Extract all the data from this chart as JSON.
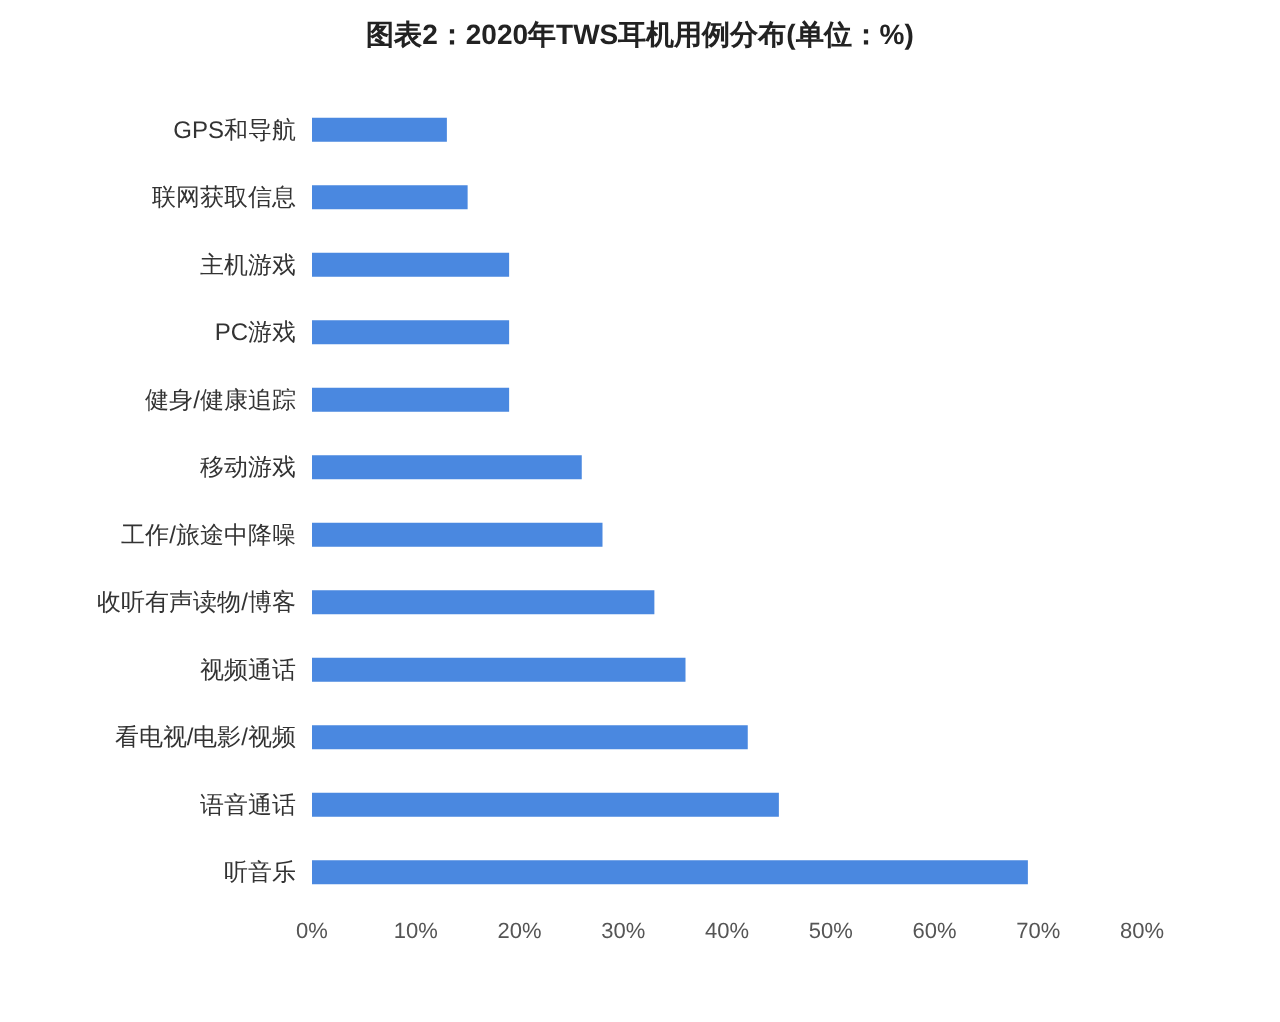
{
  "chart_data": {
    "type": "bar",
    "orientation": "horizontal",
    "title": "图表2：2020年TWS耳机用例分布(单位：%)",
    "categories": [
      "GPS和导航",
      "联网获取信息",
      "主机游戏",
      "PC游戏",
      "健身/健康追踪",
      "移动游戏",
      "工作/旅途中降噪",
      "收听有声读物/博客",
      "视频通话",
      "看电视/电影/视频",
      "语音通话",
      "听音乐"
    ],
    "values": [
      13,
      15,
      19,
      19,
      19,
      26,
      28,
      33,
      36,
      42,
      45,
      69
    ],
    "color": "#4a88e0",
    "xlim": [
      0,
      80
    ],
    "xticks": [
      {
        "value": 0,
        "label": "0%"
      },
      {
        "value": 10,
        "label": "10%"
      },
      {
        "value": 20,
        "label": "20%"
      },
      {
        "value": 30,
        "label": "30%"
      },
      {
        "value": 40,
        "label": "40%"
      },
      {
        "value": 50,
        "label": "50%"
      },
      {
        "value": 60,
        "label": "60%"
      },
      {
        "value": 70,
        "label": "70%"
      },
      {
        "value": 80,
        "label": "80%"
      }
    ],
    "grid": false
  }
}
